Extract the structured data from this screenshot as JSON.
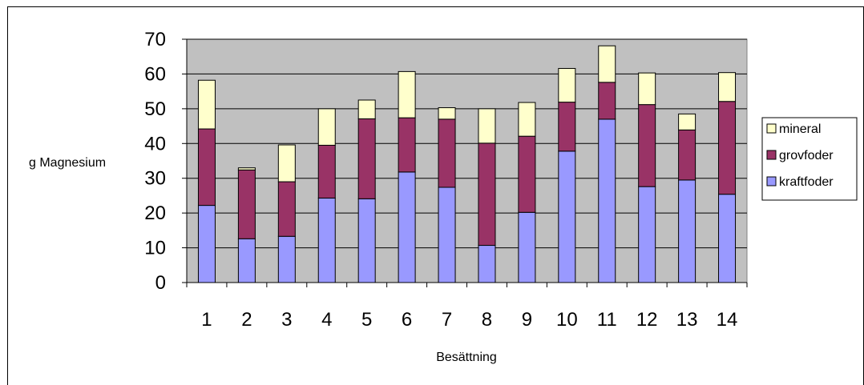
{
  "chart_data": {
    "type": "bar",
    "stacked": true,
    "xlabel": "Besättning",
    "ylabel": "g Magnesium",
    "ylim": [
      0,
      70
    ],
    "yticks": [
      0,
      10,
      20,
      30,
      40,
      50,
      60,
      70
    ],
    "grid": true,
    "legend_position": "right",
    "categories": [
      "1",
      "2",
      "3",
      "4",
      "5",
      "6",
      "7",
      "8",
      "9",
      "10",
      "11",
      "12",
      "13",
      "14"
    ],
    "series": [
      {
        "name": "kraftfoder",
        "color": "#9999ff",
        "values": [
          22.2,
          12.6,
          13.3,
          24.3,
          24.1,
          31.8,
          27.4,
          10.7,
          20.2,
          37.8,
          47.0,
          27.6,
          29.5,
          25.4
        ]
      },
      {
        "name": "grovfoder",
        "color": "#993366",
        "values": [
          22.0,
          19.8,
          15.7,
          15.2,
          23.0,
          15.6,
          19.6,
          29.4,
          21.9,
          14.1,
          10.6,
          23.6,
          14.4,
          26.7
        ]
      },
      {
        "name": "mineral",
        "color": "#ffffcc",
        "values": [
          14.0,
          0.6,
          10.6,
          10.5,
          5.4,
          13.3,
          3.3,
          9.9,
          9.7,
          9.7,
          10.5,
          9.1,
          4.6,
          8.3
        ]
      }
    ],
    "legend_order": [
      "mineral",
      "grovfoder",
      "kraftfoder"
    ],
    "plot_background": "#c0c0c0"
  }
}
